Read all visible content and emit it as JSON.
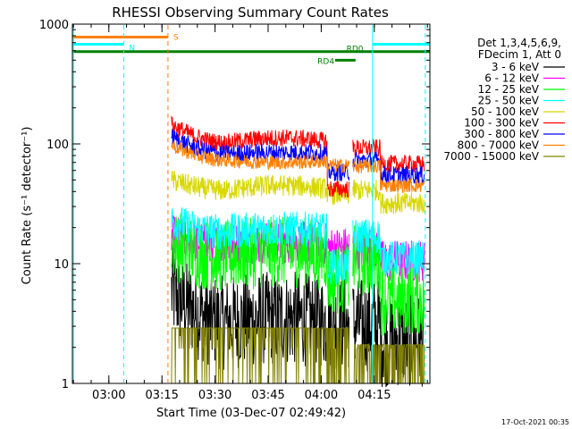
{
  "chart_data": {
    "type": "line",
    "title": "RHESSI Observing Summary Count Rates",
    "xlabel": "Start Time (03-Dec-07 02:49:42)",
    "ylabel": "Count Rate (s⁻¹ detector⁻¹)",
    "y_scale": "log",
    "ylim": [
      1,
      1000
    ],
    "xlim_minutes": [
      0,
      101
    ],
    "x_ticks": [
      {
        "minute": 10.3,
        "label": "03:00"
      },
      {
        "minute": 25.3,
        "label": "03:15"
      },
      {
        "minute": 40.3,
        "label": "03:30"
      },
      {
        "minute": 55.3,
        "label": "03:45"
      },
      {
        "minute": 70.3,
        "label": "04:00"
      },
      {
        "minute": 85.3,
        "label": "04:15"
      }
    ],
    "y_ticks": [
      {
        "value": 1,
        "label": "1"
      },
      {
        "value": 10,
        "label": "10"
      },
      {
        "value": 100,
        "label": "100"
      },
      {
        "value": 1000,
        "label": "1000"
      }
    ],
    "legend_header": [
      "Det 1,3,4,5,6,9,",
      "FDecim 1, Att 0"
    ],
    "data_start_minute": 28.0,
    "drop_minute": 72.0,
    "gap_start_minute": 78.2,
    "gap_end_minute": 79.2,
    "recover_minute": 79.2,
    "step_minute": 87.0,
    "series": [
      {
        "name": "3 - 6 keV",
        "color": "#000000",
        "start": 5.8,
        "mid": 3.2,
        "end": 3.5,
        "post_drop": 3.2,
        "recover": 3.1,
        "post_step": 2.3,
        "noise": 0.18
      },
      {
        "name": "6 - 12 keV",
        "color": "#ff00ff",
        "start": 17,
        "mid": 14.5,
        "end": 15,
        "post_drop": 13.5,
        "recover": 13.5,
        "post_step": 10.5,
        "noise": 0.06
      },
      {
        "name": "12 - 25 keV",
        "color": "#00ff00",
        "start": 14.5,
        "mid": 11.5,
        "end": 12.5,
        "post_drop": 7.5,
        "recover": 10.5,
        "post_step": 5.0,
        "noise": 0.1
      },
      {
        "name": "25 - 50 keV",
        "color": "#00ffff",
        "start": 23,
        "mid": 18.5,
        "end": 19.5,
        "post_drop": 9.5,
        "recover": 17.0,
        "post_step": 11.0,
        "noise": 0.05
      },
      {
        "name": "50 - 100 keV",
        "color": "#d8d800",
        "start": 50,
        "mid": 41,
        "end": 45,
        "post_drop": 38,
        "recover": 41,
        "post_step": 32,
        "noise": 0.03
      },
      {
        "name": "100 - 300 keV",
        "color": "#ff0000",
        "start": 145,
        "mid": 102,
        "end": 112,
        "post_drop": 42,
        "recover": 92,
        "post_step": 68,
        "noise": 0.025
      },
      {
        "name": "300 - 800 keV",
        "color": "#0000ff",
        "start": 115,
        "mid": 83,
        "end": 85,
        "post_drop": 58,
        "recover": 73,
        "post_step": 55,
        "noise": 0.025
      },
      {
        "name": "800 - 7000 keV",
        "color": "#ff8000",
        "start": 98,
        "mid": 73,
        "end": 70,
        "post_drop": 66,
        "recover": 65,
        "post_step": 45,
        "noise": 0.02
      },
      {
        "name": "7000 - 15000 keV",
        "color": "#808000",
        "start": 2.9,
        "mid": 2.9,
        "end": 2.9,
        "post_drop": 2.9,
        "recover": 2.1,
        "post_step": 2.1,
        "noise": 0.0
      }
    ],
    "flag_bars": [
      {
        "label": "S",
        "color": "#ff8000",
        "start_minute": 0,
        "end_minute": 27.0,
        "value": 780
      },
      {
        "label": "N",
        "color": "#00ffff",
        "start_minute": 0,
        "end_minute": 14.5,
        "value": 680
      },
      {
        "label": "",
        "color": "#00ffff",
        "start_minute": 84.8,
        "end_minute": 101,
        "value": 680
      },
      {
        "label": "RD0",
        "color": "#008000",
        "start_minute": 0,
        "end_minute": 101,
        "value": 590
      },
      {
        "label": "RD4",
        "color": "#008000",
        "start_minute": 74.2,
        "end_minute": 80.0,
        "value": 500
      }
    ],
    "vertical_markers": [
      {
        "minute": 0.3,
        "color": "#00ffff",
        "style": "solid"
      },
      {
        "minute": 14.5,
        "color": "#00ffff",
        "style": "dashed"
      },
      {
        "minute": 27.0,
        "color": "#ff8000",
        "style": "dashed"
      },
      {
        "minute": 84.8,
        "color": "#00ffff",
        "style": "solid"
      },
      {
        "minute": 99.7,
        "color": "#00ffff",
        "style": "dashed"
      }
    ]
  },
  "footer_timestamp": "17-Oct-2021 00:35"
}
